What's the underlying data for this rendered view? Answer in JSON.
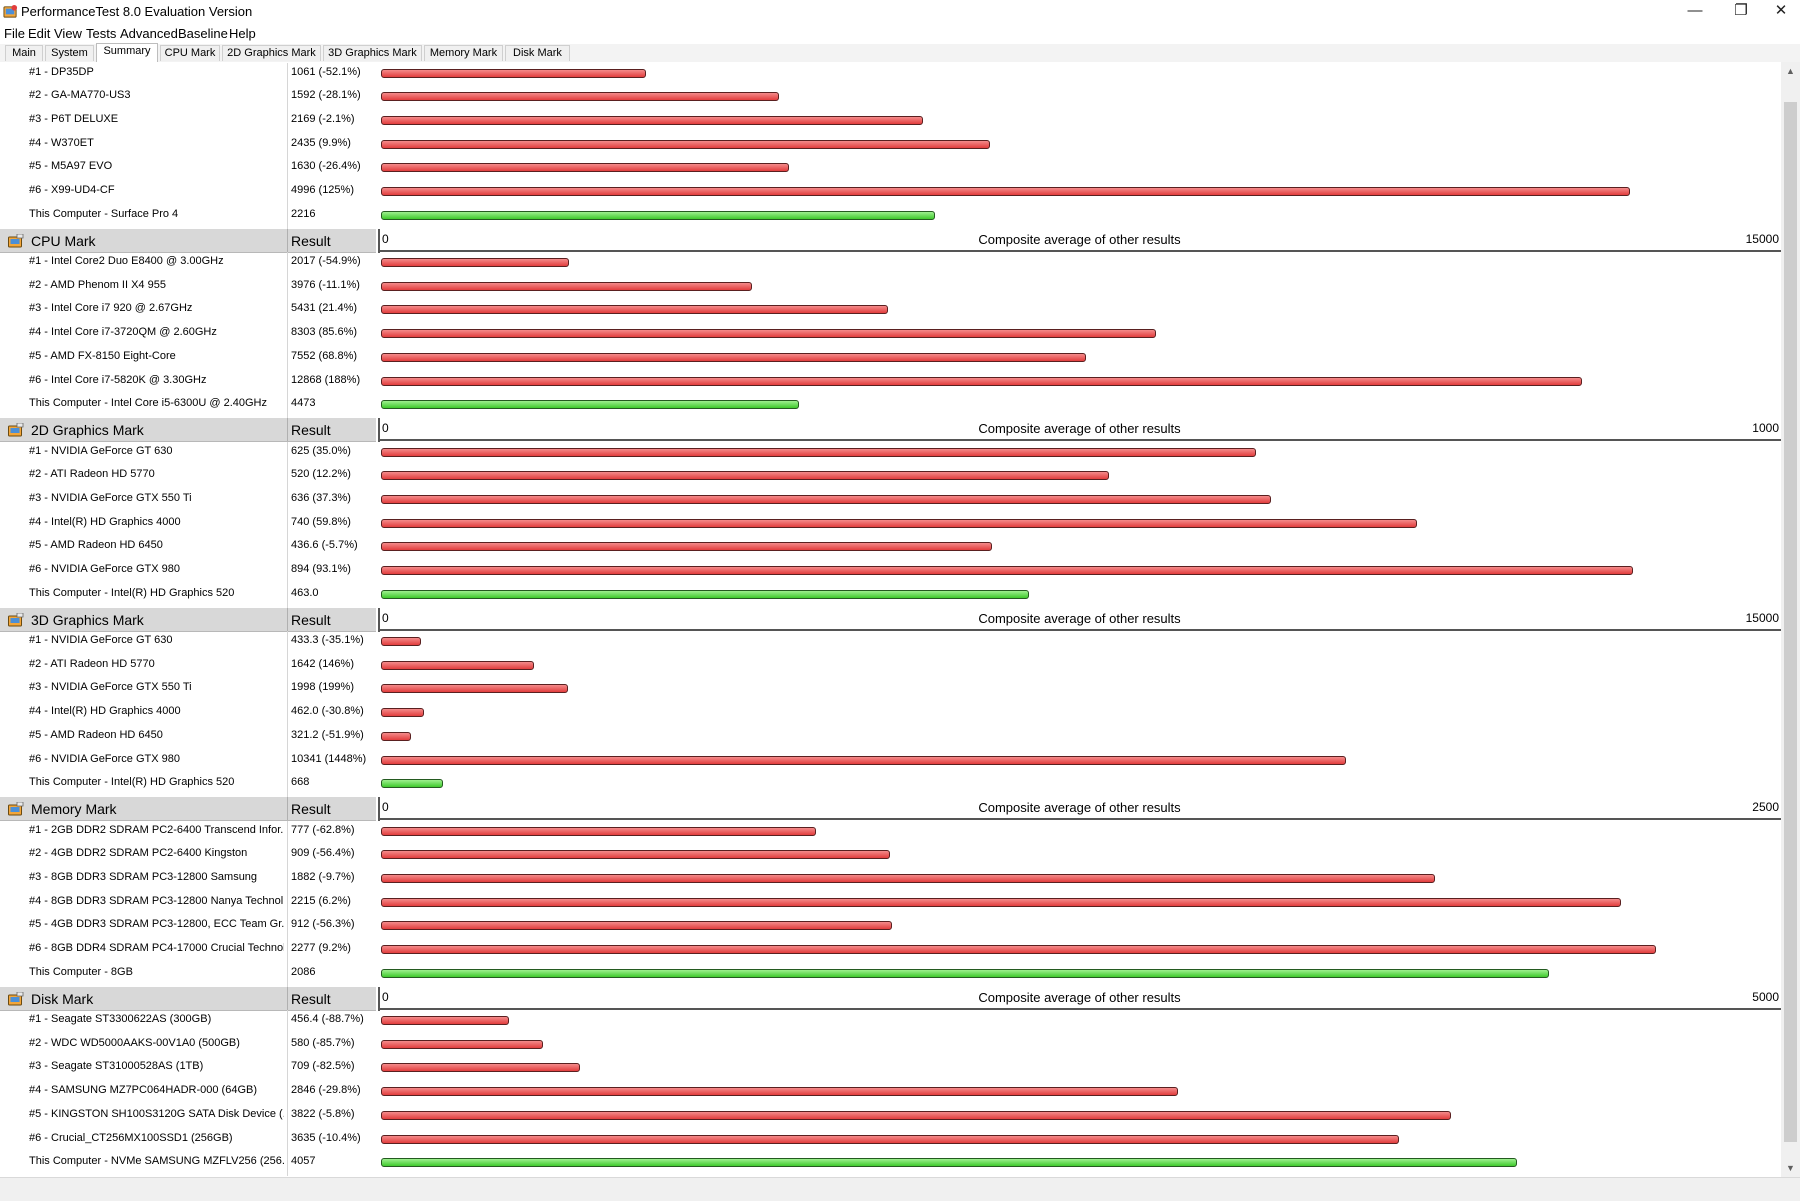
{
  "window": {
    "title": "PerformanceTest 8.0 Evaluation Version",
    "controls": {
      "minimize": "—",
      "restore": "❐",
      "close": "✕"
    }
  },
  "menu": [
    "File",
    "Edit",
    "View",
    "Tests",
    "Advanced",
    "Baseline",
    "Help"
  ],
  "tabs": [
    "Main",
    "System",
    "Summary",
    "CPU Mark",
    "2D Graphics Mark",
    "3D Graphics Mark",
    "Memory Mark",
    "Disk Mark"
  ],
  "active_tab": "Summary",
  "colors": {
    "other_result_bar": "#e23d3d",
    "this_computer_bar": "#3fca2c"
  },
  "sections": [
    {
      "id": "passmark",
      "header": null,
      "axis": null,
      "scale_max": 5600,
      "rows": [
        {
          "name": "#1 - DP35DP",
          "result": "1061 (-52.1%)",
          "value": 1061,
          "type": "other"
        },
        {
          "name": "#2 - GA-MA770-US3",
          "result": "1592 (-28.1%)",
          "value": 1592,
          "type": "other"
        },
        {
          "name": "#3 - P6T DELUXE",
          "result": "2169 (-2.1%)",
          "value": 2169,
          "type": "other"
        },
        {
          "name": "#4 - W370ET",
          "result": "2435 (9.9%)",
          "value": 2435,
          "type": "other"
        },
        {
          "name": "#5 - M5A97 EVO",
          "result": "1630 (-26.4%)",
          "value": 1630,
          "type": "other"
        },
        {
          "name": "#6 - X99-UD4-CF",
          "result": "4996 (125%)",
          "value": 4996,
          "type": "other"
        },
        {
          "name": "This Computer - Surface Pro 4",
          "result": "2216",
          "value": 2216,
          "type": "this"
        }
      ]
    },
    {
      "id": "cpu",
      "header": {
        "title": "CPU Mark",
        "result": "Result"
      },
      "axis": {
        "min": "0",
        "label": "Composite average of other results",
        "max": "15000"
      },
      "scale_max": 15000,
      "rows": [
        {
          "name": "#1 - Intel Core2 Duo E8400 @ 3.00GHz",
          "result": "2017 (-54.9%)",
          "value": 2017,
          "type": "other"
        },
        {
          "name": "#2 - AMD Phenom II X4 955",
          "result": "3976 (-11.1%)",
          "value": 3976,
          "type": "other"
        },
        {
          "name": "#3 - Intel Core i7 920 @ 2.67GHz",
          "result": "5431 (21.4%)",
          "value": 5431,
          "type": "other"
        },
        {
          "name": "#4 - Intel Core i7-3720QM @ 2.60GHz",
          "result": "8303 (85.6%)",
          "value": 8303,
          "type": "other"
        },
        {
          "name": "#5 - AMD FX-8150 Eight-Core",
          "result": "7552 (68.8%)",
          "value": 7552,
          "type": "other"
        },
        {
          "name": "#6 - Intel Core i7-5820K @ 3.30GHz",
          "result": "12868 (188%)",
          "value": 12868,
          "type": "other"
        },
        {
          "name": "This Computer - Intel Core i5-6300U @ 2.40GHz",
          "result": "4473",
          "value": 4473,
          "type": "this"
        }
      ]
    },
    {
      "id": "2d",
      "header": {
        "title": "2D Graphics Mark",
        "result": "Result"
      },
      "axis": {
        "min": "0",
        "label": "Composite average of other results",
        "max": "1000"
      },
      "scale_max": 1000,
      "rows": [
        {
          "name": "#1 - NVIDIA GeForce GT 630",
          "result": "625 (35.0%)",
          "value": 625,
          "type": "other"
        },
        {
          "name": "#2 - ATI Radeon HD 5770",
          "result": "520 (12.2%)",
          "value": 520,
          "type": "other"
        },
        {
          "name": "#3 - NVIDIA GeForce GTX 550 Ti",
          "result": "636 (37.3%)",
          "value": 636,
          "type": "other"
        },
        {
          "name": "#4 - Intel(R) HD Graphics 4000",
          "result": "740 (59.8%)",
          "value": 740,
          "type": "other"
        },
        {
          "name": "#5 - AMD Radeon HD 6450",
          "result": "436.6 (-5.7%)",
          "value": 436.6,
          "type": "other"
        },
        {
          "name": "#6 - NVIDIA GeForce GTX 980",
          "result": "894 (93.1%)",
          "value": 894,
          "type": "other"
        },
        {
          "name": "This Computer - Intel(R) HD Graphics 520",
          "result": "463.0",
          "value": 463.0,
          "type": "this"
        }
      ]
    },
    {
      "id": "3d",
      "header": {
        "title": "3D Graphics Mark",
        "result": "Result"
      },
      "axis": {
        "min": "0",
        "label": "Composite average of other results",
        "max": "15000"
      },
      "scale_max": 15000,
      "rows": [
        {
          "name": "#1 - NVIDIA GeForce GT 630",
          "result": "433.3 (-35.1%)",
          "value": 433.3,
          "type": "other"
        },
        {
          "name": "#2 - ATI Radeon HD 5770",
          "result": "1642 (146%)",
          "value": 1642,
          "type": "other"
        },
        {
          "name": "#3 - NVIDIA GeForce GTX 550 Ti",
          "result": "1998 (199%)",
          "value": 1998,
          "type": "other"
        },
        {
          "name": "#4 - Intel(R) HD Graphics 4000",
          "result": "462.0 (-30.8%)",
          "value": 462.0,
          "type": "other"
        },
        {
          "name": "#5 - AMD Radeon HD 6450",
          "result": "321.2 (-51.9%)",
          "value": 321.2,
          "type": "other"
        },
        {
          "name": "#6 - NVIDIA GeForce GTX 980",
          "result": "10341 (1448%)",
          "value": 10341,
          "type": "other"
        },
        {
          "name": "This Computer - Intel(R) HD Graphics 520",
          "result": "668",
          "value": 668,
          "type": "this"
        }
      ]
    },
    {
      "id": "memory",
      "header": {
        "title": "Memory Mark",
        "result": "Result"
      },
      "axis": {
        "min": "0",
        "label": "Composite average of other results",
        "max": "2500"
      },
      "scale_max": 2500,
      "rows": [
        {
          "name": "#1 - 2GB DDR2 SDRAM PC2-6400 Transcend Infor...",
          "result": "777 (-62.8%)",
          "value": 777,
          "type": "other"
        },
        {
          "name": "#2 - 4GB DDR2 SDRAM PC2-6400 Kingston",
          "result": "909 (-56.4%)",
          "value": 909,
          "type": "other"
        },
        {
          "name": "#3 - 8GB DDR3 SDRAM PC3-12800 Samsung",
          "result": "1882 (-9.7%)",
          "value": 1882,
          "type": "other"
        },
        {
          "name": "#4 - 8GB DDR3 SDRAM PC3-12800 Nanya Technol...",
          "result": "2215 (6.2%)",
          "value": 2215,
          "type": "other"
        },
        {
          "name": "#5 - 4GB DDR3 SDRAM PC3-12800, ECC Team Gr...",
          "result": "912 (-56.3%)",
          "value": 912,
          "type": "other"
        },
        {
          "name": "#6 - 8GB DDR4 SDRAM PC4-17000 Crucial Technol...",
          "result": "2277 (9.2%)",
          "value": 2277,
          "type": "other"
        },
        {
          "name": "This Computer - 8GB",
          "result": "2086",
          "value": 2086,
          "type": "this"
        }
      ]
    },
    {
      "id": "disk",
      "header": {
        "title": "Disk Mark",
        "result": "Result"
      },
      "axis": {
        "min": "0",
        "label": "Composite average of other results",
        "max": "5000"
      },
      "scale_max": 5000,
      "rows": [
        {
          "name": "#1 - Seagate ST3300622AS (300GB)",
          "result": "456.4 (-88.7%)",
          "value": 456.4,
          "type": "other"
        },
        {
          "name": "#2 - WDC WD5000AAKS-00V1A0 (500GB)",
          "result": "580 (-85.7%)",
          "value": 580,
          "type": "other"
        },
        {
          "name": "#3 - Seagate ST31000528AS (1TB)",
          "result": "709 (-82.5%)",
          "value": 709,
          "type": "other"
        },
        {
          "name": "#4 - SAMSUNG MZ7PC064HADR-000 (64GB)",
          "result": "2846 (-29.8%)",
          "value": 2846,
          "type": "other"
        },
        {
          "name": "#5 - KINGSTON SH100S3120G SATA Disk Device (...",
          "result": "3822 (-5.8%)",
          "value": 3822,
          "type": "other"
        },
        {
          "name": "#6 - Crucial_CT256MX100SSD1 (256GB)",
          "result": "3635 (-10.4%)",
          "value": 3635,
          "type": "other"
        },
        {
          "name": "This Computer - NVMe SAMSUNG MZFLV256 (256...",
          "result": "4057",
          "value": 4057,
          "type": "this"
        }
      ]
    }
  ]
}
